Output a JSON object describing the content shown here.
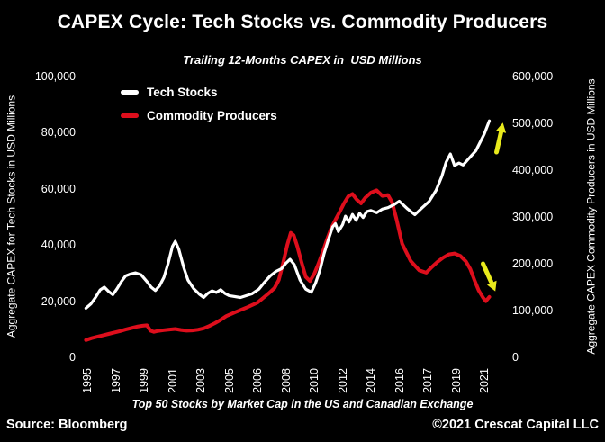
{
  "page": {
    "background": "#000000",
    "text_color": "#ffffff"
  },
  "header": {
    "title": "CAPEX Cycle: Tech Stocks vs. Commodity Producers",
    "subtitle": "Trailing 12-Months CAPEX in  USD Millions"
  },
  "footer": {
    "note": "Top 50 Stocks by Market Cap in the US and Canadian Exchange",
    "source": "Source: Bloomberg",
    "copyright": "©2021 Crescat Capital LLC"
  },
  "chart_data": {
    "type": "line",
    "title": "CAPEX Cycle: Tech Stocks vs. Commodity Producers",
    "subtitle": "Trailing 12-Months CAPEX in  USD Millions",
    "grid": false,
    "plot_background": "#000000",
    "legend": {
      "position": "inside-top-left",
      "entries": [
        "Tech Stocks",
        "Commodity Producers"
      ]
    },
    "x_axis": {
      "tick_labels": [
        "1995",
        "1997",
        "1999",
        "2001",
        "2003",
        "2005",
        "2006",
        "2008",
        "2010",
        "2012",
        "2014",
        "2016",
        "2017",
        "2019",
        "2021"
      ],
      "tick_years": [
        1995,
        1997,
        1999,
        2001,
        2003,
        2005,
        2006,
        2008,
        2010,
        2012,
        2014,
        2016,
        2017,
        2019,
        2021
      ]
    },
    "left_axis": {
      "title": "Aggregate CAPEX for Tech Stocks in USD Millions",
      "range": [
        0,
        100000
      ],
      "ticks": [
        {
          "value": 0,
          "label": "0"
        },
        {
          "value": 20000,
          "label": "20,000"
        },
        {
          "value": 40000,
          "label": "40,000"
        },
        {
          "value": 60000,
          "label": "60,000"
        },
        {
          "value": 80000,
          "label": "80,000"
        },
        {
          "value": 100000,
          "label": "100,000"
        }
      ]
    },
    "right_axis": {
      "title": "Aggregate CAPEX Commodity Producers in USD Millions",
      "range": [
        0,
        600000
      ],
      "ticks": [
        {
          "value": 0,
          "label": "0"
        },
        {
          "value": 100000,
          "label": "100,000"
        },
        {
          "value": 200000,
          "label": "200,000"
        },
        {
          "value": 300000,
          "label": "300,000"
        },
        {
          "value": 400000,
          "label": "400,000"
        },
        {
          "value": 500000,
          "label": "500,000"
        },
        {
          "value": 600000,
          "label": "600,000"
        }
      ]
    },
    "series": [
      {
        "name": "Tech Stocks",
        "axis": "left",
        "color": "#ffffff",
        "stroke_width": 3.2,
        "points": [
          [
            1994.9,
            17500
          ],
          [
            1995.25,
            19000
          ],
          [
            1995.6,
            21500
          ],
          [
            1995.9,
            24000
          ],
          [
            1996.2,
            25000
          ],
          [
            1996.5,
            23500
          ],
          [
            1996.8,
            22300
          ],
          [
            1997.1,
            24500
          ],
          [
            1997.4,
            27000
          ],
          [
            1997.7,
            29000
          ],
          [
            1998.0,
            29600
          ],
          [
            1998.4,
            30100
          ],
          [
            1998.8,
            29400
          ],
          [
            1999.2,
            27000
          ],
          [
            1999.5,
            25000
          ],
          [
            1999.8,
            23800
          ],
          [
            2000.1,
            25500
          ],
          [
            2000.4,
            28500
          ],
          [
            2000.7,
            33500
          ],
          [
            2001.0,
            39500
          ],
          [
            2001.2,
            41300
          ],
          [
            2001.45,
            38500
          ],
          [
            2001.8,
            32000
          ],
          [
            2002.1,
            27500
          ],
          [
            2002.5,
            24500
          ],
          [
            2002.9,
            22500
          ],
          [
            2003.2,
            21300
          ],
          [
            2003.5,
            22800
          ],
          [
            2003.8,
            23700
          ],
          [
            2004.1,
            23100
          ],
          [
            2004.4,
            24100
          ],
          [
            2004.7,
            22800
          ],
          [
            2005.0,
            22000
          ],
          [
            2005.4,
            21300
          ],
          [
            2005.8,
            22600
          ],
          [
            2006.1,
            24300
          ],
          [
            2006.5,
            26800
          ],
          [
            2006.9,
            29000
          ],
          [
            2007.3,
            30600
          ],
          [
            2007.7,
            31600
          ],
          [
            2008.0,
            33500
          ],
          [
            2008.3,
            34900
          ],
          [
            2008.6,
            33000
          ],
          [
            2009.0,
            27500
          ],
          [
            2009.4,
            24300
          ],
          [
            2009.8,
            23200
          ],
          [
            2010.1,
            26500
          ],
          [
            2010.4,
            31000
          ],
          [
            2010.7,
            37000
          ],
          [
            2011.0,
            42000
          ],
          [
            2011.3,
            46500
          ],
          [
            2011.5,
            47600
          ],
          [
            2011.7,
            44800
          ],
          [
            2012.0,
            47200
          ],
          [
            2012.2,
            50300
          ],
          [
            2012.45,
            48200
          ],
          [
            2012.7,
            50900
          ],
          [
            2012.95,
            48800
          ],
          [
            2013.2,
            51300
          ],
          [
            2013.45,
            49800
          ],
          [
            2013.7,
            51900
          ],
          [
            2014.0,
            52300
          ],
          [
            2014.4,
            51500
          ],
          [
            2014.8,
            52800
          ],
          [
            2015.2,
            53300
          ],
          [
            2015.6,
            54300
          ],
          [
            2016.0,
            55600
          ],
          [
            2016.3,
            52800
          ],
          [
            2016.55,
            50800
          ],
          [
            2016.8,
            53200
          ],
          [
            2017.1,
            55500
          ],
          [
            2017.6,
            59500
          ],
          [
            2018.0,
            64500
          ],
          [
            2018.3,
            69500
          ],
          [
            2018.6,
            72400
          ],
          [
            2018.9,
            68300
          ],
          [
            2019.2,
            69200
          ],
          [
            2019.5,
            68500
          ],
          [
            2019.8,
            70200
          ],
          [
            2020.1,
            71900
          ],
          [
            2020.4,
            73600
          ],
          [
            2020.7,
            76600
          ],
          [
            2021.0,
            79600
          ],
          [
            2021.35,
            84200
          ]
        ]
      },
      {
        "name": "Commodity Producers",
        "axis": "right",
        "color": "#dd0e1c",
        "stroke_width": 4,
        "points": [
          [
            1994.9,
            37000
          ],
          [
            1995.3,
            41000
          ],
          [
            1995.7,
            44000
          ],
          [
            1996.1,
            47000
          ],
          [
            1996.5,
            50000
          ],
          [
            1996.9,
            53000
          ],
          [
            1997.3,
            56000
          ],
          [
            1997.7,
            59500
          ],
          [
            1998.1,
            62500
          ],
          [
            1998.5,
            65500
          ],
          [
            1998.9,
            67500
          ],
          [
            1999.2,
            68500
          ],
          [
            1999.45,
            57000
          ],
          [
            1999.7,
            54500
          ],
          [
            2000.0,
            56500
          ],
          [
            2000.4,
            58000
          ],
          [
            2000.8,
            59500
          ],
          [
            2001.2,
            60500
          ],
          [
            2001.6,
            58500
          ],
          [
            2002.0,
            57000
          ],
          [
            2002.4,
            57500
          ],
          [
            2002.8,
            59000
          ],
          [
            2003.2,
            62000
          ],
          [
            2003.6,
            67000
          ],
          [
            2004.0,
            73000
          ],
          [
            2004.4,
            80000
          ],
          [
            2004.8,
            88000
          ],
          [
            2005.2,
            96000
          ],
          [
            2005.6,
            106000
          ],
          [
            2006.0,
            117000
          ],
          [
            2006.4,
            127000
          ],
          [
            2006.8,
            137000
          ],
          [
            2007.2,
            148000
          ],
          [
            2007.5,
            165000
          ],
          [
            2007.8,
            200000
          ],
          [
            2008.1,
            240000
          ],
          [
            2008.35,
            266000
          ],
          [
            2008.55,
            261000
          ],
          [
            2008.8,
            238000
          ],
          [
            2009.1,
            204000
          ],
          [
            2009.4,
            172000
          ],
          [
            2009.7,
            163000
          ],
          [
            2010.0,
            178000
          ],
          [
            2010.3,
            200000
          ],
          [
            2010.6,
            225000
          ],
          [
            2010.9,
            252000
          ],
          [
            2011.2,
            276000
          ],
          [
            2011.5,
            294000
          ],
          [
            2011.8,
            311000
          ],
          [
            2012.1,
            329000
          ],
          [
            2012.4,
            344000
          ],
          [
            2012.7,
            349000
          ],
          [
            2013.0,
            337000
          ],
          [
            2013.3,
            329000
          ],
          [
            2013.6,
            341000
          ],
          [
            2014.0,
            352000
          ],
          [
            2014.4,
            357000
          ],
          [
            2014.8,
            345000
          ],
          [
            2015.2,
            347000
          ],
          [
            2015.5,
            331000
          ],
          [
            2015.8,
            296000
          ],
          [
            2016.1,
            243000
          ],
          [
            2016.4,
            206000
          ],
          [
            2016.7,
            186000
          ],
          [
            2016.95,
            181000
          ],
          [
            2017.3,
            193000
          ],
          [
            2017.7,
            204000
          ],
          [
            2018.1,
            213000
          ],
          [
            2018.5,
            220000
          ],
          [
            2018.9,
            222000
          ],
          [
            2019.3,
            217000
          ],
          [
            2019.7,
            205000
          ],
          [
            2020.0,
            189000
          ],
          [
            2020.3,
            165000
          ],
          [
            2020.6,
            143000
          ],
          [
            2020.9,
            128000
          ],
          [
            2021.1,
            120000
          ],
          [
            2021.35,
            129000
          ]
        ]
      }
    ],
    "annotations": [
      {
        "name": "tech-trend-arrow",
        "direction": "up",
        "color": "#e9ea1c"
      },
      {
        "name": "commodity-trend-arrow",
        "direction": "down",
        "color": "#e9ea1c"
      }
    ]
  }
}
